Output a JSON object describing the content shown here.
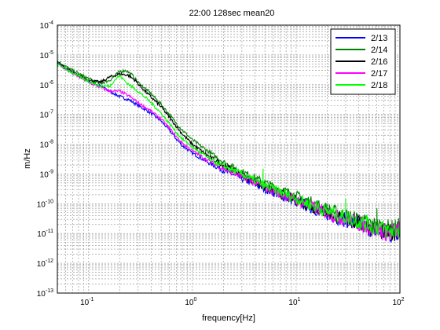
{
  "chart_data": {
    "type": "line",
    "title": "22:00 128sec mean20",
    "xlabel": "frequency[Hz]",
    "ylabel": "m/Hz",
    "x_scale": "log",
    "y_scale": "log",
    "xlim": [
      0.05,
      100
    ],
    "ylim": [
      1e-13,
      0.0001
    ],
    "x_tick_labels": [
      {
        "value": 0.1,
        "mantissa": "10",
        "exp": "-1"
      },
      {
        "value": 1,
        "mantissa": "10",
        "exp": "0"
      },
      {
        "value": 10,
        "mantissa": "10",
        "exp": "1"
      },
      {
        "value": 100,
        "mantissa": "10",
        "exp": "2"
      }
    ],
    "y_tick_labels": [
      {
        "value": 1e-13,
        "mantissa": "10",
        "exp": "-13"
      },
      {
        "value": 1e-12,
        "mantissa": "10",
        "exp": "-12"
      },
      {
        "value": 1e-11,
        "mantissa": "10",
        "exp": "-11"
      },
      {
        "value": 1e-10,
        "mantissa": "10",
        "exp": "-10"
      },
      {
        "value": 1e-09,
        "mantissa": "10",
        "exp": "-9"
      },
      {
        "value": 1e-08,
        "mantissa": "10",
        "exp": "-8"
      },
      {
        "value": 1e-07,
        "mantissa": "10",
        "exp": "-7"
      },
      {
        "value": 1e-06,
        "mantissa": "10",
        "exp": "-6"
      },
      {
        "value": 1e-05,
        "mantissa": "10",
        "exp": "-5"
      },
      {
        "value": 0.0001,
        "mantissa": "10",
        "exp": "-4"
      }
    ],
    "grid": true,
    "legend_position": "top-right",
    "series": [
      {
        "name": "2/13",
        "color": "#0000ff",
        "points": [
          [
            0.05,
            5.5e-06
          ],
          [
            0.07,
            2.5e-06
          ],
          [
            0.1,
            1.3e-06
          ],
          [
            0.13,
            9e-07
          ],
          [
            0.16,
            6e-07
          ],
          [
            0.2,
            4e-07
          ],
          [
            0.25,
            3e-07
          ],
          [
            0.3,
            2e-07
          ],
          [
            0.4,
            1.1e-07
          ],
          [
            0.5,
            6e-08
          ],
          [
            0.6,
            3e-08
          ],
          [
            0.7,
            1.5e-08
          ],
          [
            0.8,
            9e-09
          ],
          [
            1,
            5e-09
          ],
          [
            1.5,
            2.2e-09
          ],
          [
            2,
            1.3e-09
          ],
          [
            3,
            7e-10
          ],
          [
            5,
            3.2e-10
          ],
          [
            10,
            1.2e-10
          ],
          [
            20,
            4.5e-11
          ],
          [
            30,
            2.8e-11
          ],
          [
            50,
            1.5e-11
          ],
          [
            80,
            9e-12
          ],
          [
            100,
            1.3e-11
          ]
        ]
      },
      {
        "name": "2/14",
        "color": "#008000",
        "points": [
          [
            0.05,
            6e-06
          ],
          [
            0.07,
            3e-06
          ],
          [
            0.1,
            1.6e-06
          ],
          [
            0.13,
            1.1e-06
          ],
          [
            0.16,
            1.4e-06
          ],
          [
            0.2,
            2.8e-06
          ],
          [
            0.23,
            3e-06
          ],
          [
            0.26,
            2.2e-06
          ],
          [
            0.3,
            1.2e-06
          ],
          [
            0.4,
            5e-07
          ],
          [
            0.5,
            2.2e-07
          ],
          [
            0.6,
            1e-07
          ],
          [
            0.7,
            5e-08
          ],
          [
            0.8,
            3e-08
          ],
          [
            1,
            1.4e-08
          ],
          [
            1.5,
            5e-09
          ],
          [
            2,
            2.5e-09
          ],
          [
            3,
            1.2e-09
          ],
          [
            5,
            5e-10
          ],
          [
            10,
            1.8e-10
          ],
          [
            20,
            6.5e-11
          ],
          [
            30,
            4e-11
          ],
          [
            50,
            2.2e-11
          ],
          [
            80,
            1.4e-11
          ],
          [
            100,
            1.6e-11
          ]
        ]
      },
      {
        "name": "2/16",
        "color": "#000000",
        "points": [
          [
            0.05,
            5.5e-06
          ],
          [
            0.07,
            2.6e-06
          ],
          [
            0.1,
            1.4e-06
          ],
          [
            0.13,
            1.2e-06
          ],
          [
            0.16,
            1.8e-06
          ],
          [
            0.2,
            2.3e-06
          ],
          [
            0.24,
            2.1e-06
          ],
          [
            0.28,
            1.4e-06
          ],
          [
            0.35,
            6e-07
          ],
          [
            0.5,
            1.8e-07
          ],
          [
            0.6,
            8e-08
          ],
          [
            0.7,
            4e-08
          ],
          [
            0.8,
            2.2e-08
          ],
          [
            1,
            1e-08
          ],
          [
            1.5,
            3.5e-09
          ],
          [
            2,
            2e-09
          ],
          [
            3,
            9e-10
          ],
          [
            5,
            3.6e-10
          ],
          [
            10,
            1.3e-10
          ],
          [
            20,
            5e-11
          ],
          [
            30,
            3e-11
          ],
          [
            50,
            1.7e-11
          ],
          [
            80,
            1e-11
          ],
          [
            100,
            1.4e-11
          ]
        ]
      },
      {
        "name": "2/17",
        "color": "#ff00ff",
        "points": [
          [
            0.05,
            5e-06
          ],
          [
            0.07,
            2.4e-06
          ],
          [
            0.1,
            1.2e-06
          ],
          [
            0.13,
            8e-07
          ],
          [
            0.16,
            6e-07
          ],
          [
            0.2,
            6e-07
          ],
          [
            0.25,
            4e-07
          ],
          [
            0.3,
            2.5e-07
          ],
          [
            0.4,
            1.3e-07
          ],
          [
            0.5,
            7e-08
          ],
          [
            0.6,
            3.5e-08
          ],
          [
            0.7,
            1.8e-08
          ],
          [
            0.8,
            1.1e-08
          ],
          [
            1,
            6e-09
          ],
          [
            1.5,
            2.5e-09
          ],
          [
            2,
            1.5e-09
          ],
          [
            3,
            8e-10
          ],
          [
            5,
            3.6e-10
          ],
          [
            10,
            1.3e-10
          ],
          [
            20,
            4.8e-11
          ],
          [
            30,
            3e-11
          ],
          [
            50,
            1.7e-11
          ],
          [
            80,
            1e-11
          ],
          [
            100,
            1.4e-11
          ]
        ]
      },
      {
        "name": "2/18",
        "color": "#00ff00",
        "points": [
          [
            0.05,
            5e-06
          ],
          [
            0.07,
            2.5e-06
          ],
          [
            0.1,
            1.3e-06
          ],
          [
            0.13,
            9e-07
          ],
          [
            0.16,
            9e-07
          ],
          [
            0.18,
            1.5e-06
          ],
          [
            0.2,
            2e-06
          ],
          [
            0.23,
            1.2e-06
          ],
          [
            0.3,
            6e-07
          ],
          [
            0.4,
            2.5e-07
          ],
          [
            0.5,
            1.1e-07
          ],
          [
            0.6,
            5e-08
          ],
          [
            0.7,
            2.5e-08
          ],
          [
            0.8,
            1.5e-08
          ],
          [
            1,
            8e-09
          ],
          [
            1.5,
            3e-09
          ],
          [
            2,
            1.8e-09
          ],
          [
            3,
            1e-09
          ],
          [
            5,
            4e-10
          ],
          [
            10,
            1.5e-10
          ],
          [
            20,
            5.5e-11
          ],
          [
            30,
            3.5e-11
          ],
          [
            50,
            2e-11
          ],
          [
            80,
            1.2e-11
          ],
          [
            100,
            1.5e-11
          ]
        ]
      }
    ],
    "spikes": [
      {
        "series": "2/18",
        "x": 4.8,
        "y": 1.5e-09
      },
      {
        "series": "2/18",
        "x": 30,
        "y": 1.5e-10
      },
      {
        "series": "2/18",
        "x": 50,
        "y": 3e-11
      },
      {
        "series": "2/18",
        "x": 60,
        "y": 5e-11
      },
      {
        "series": "2/18",
        "x": 75,
        "y": 1.5e-11
      },
      {
        "series": "2/14",
        "x": 60,
        "y": 7e-11
      },
      {
        "series": "2/13",
        "x": 35,
        "y": 3.2e-11
      }
    ]
  }
}
